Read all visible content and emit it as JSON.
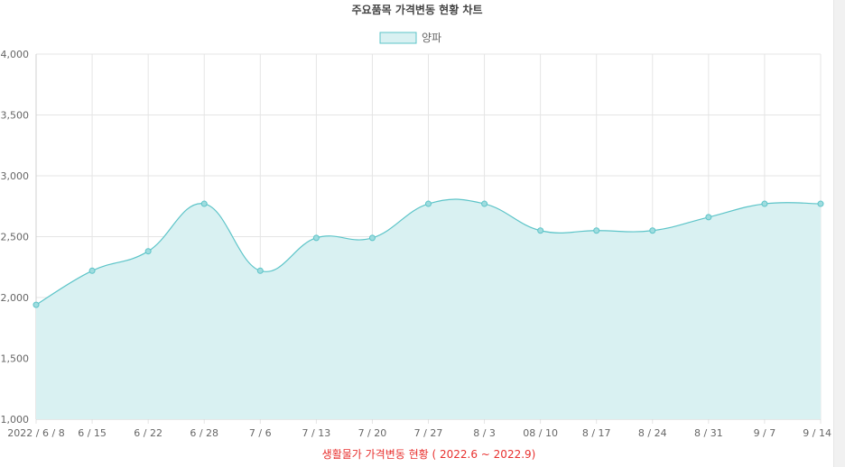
{
  "chart_data": {
    "type": "area",
    "title": "주요품목 가격변동 현황 차트",
    "xlabel": "생활물가 가격변동 현황 ( 2022.6 ~ 2022.9)",
    "ylabel": "",
    "categories": [
      "2022 / 6 / 8",
      "6 / 15",
      "6 / 22",
      "6 / 28",
      "7 / 6",
      "7 / 13",
      "7 / 20",
      "7 / 27",
      "8 / 3",
      "08 / 10",
      "8 / 17",
      "8 / 24",
      "8 / 31",
      "9 / 7",
      "9 / 14"
    ],
    "series": [
      {
        "name": "양파",
        "values": [
          1940,
          2220,
          2380,
          2770,
          2220,
          2490,
          2490,
          2770,
          2770,
          2550,
          2550,
          2550,
          2660,
          2770,
          2770
        ]
      }
    ],
    "ylim": [
      1000,
      4000
    ],
    "yticks": [
      "1,000",
      "1,500",
      "2,000",
      "2,500",
      "3,000",
      "3,500",
      "4,000"
    ],
    "grid": true,
    "legend_position": "top-center",
    "colors": {
      "line": "#5cc4c8",
      "fill": "#d9f1f2",
      "point_fill": "#9fdcdf",
      "grid": "#e5e5e5",
      "axis_text": "#666666",
      "title": "#444444",
      "xlabel": "#e8312f"
    }
  }
}
